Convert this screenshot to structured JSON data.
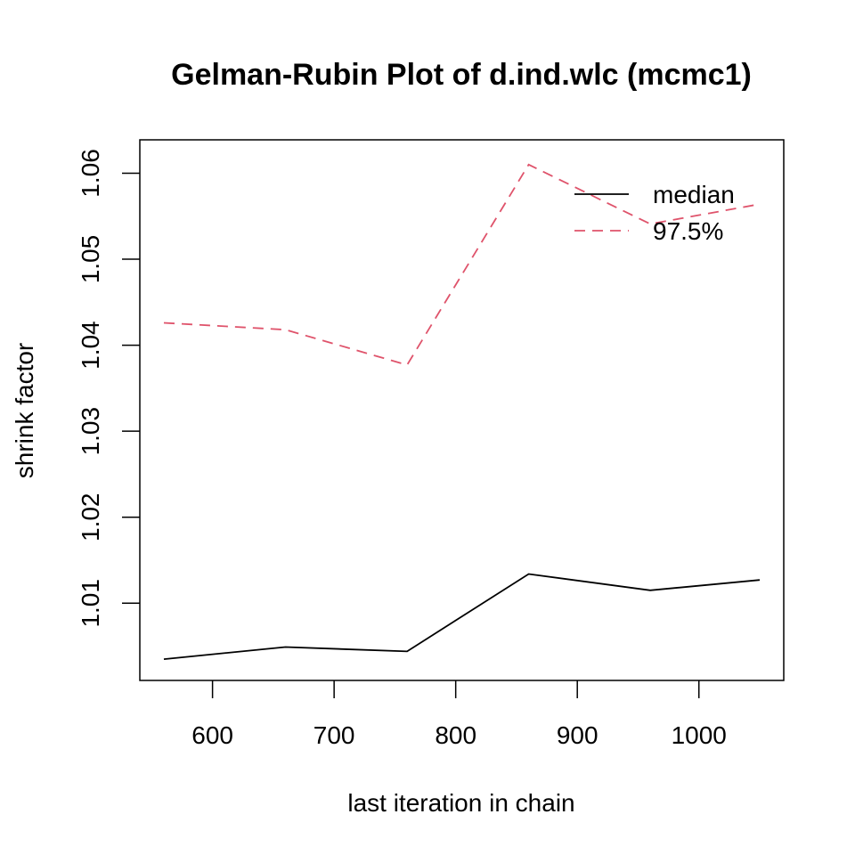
{
  "chart_data": {
    "type": "line",
    "title": "Gelman-Rubin Plot of d.ind.wlc (mcmc1)",
    "xlabel": "last iteration in chain",
    "ylabel": "shrink factor",
    "x": [
      560,
      660,
      760,
      860,
      960,
      1050
    ],
    "xlim": [
      560,
      1050
    ],
    "ylim": [
      1.0033,
      1.0615
    ],
    "xticks": [
      600,
      700,
      800,
      900,
      1000
    ],
    "yticks": [
      1.01,
      1.02,
      1.03,
      1.04,
      1.05,
      1.06
    ],
    "xtick_labels": [
      "600",
      "700",
      "800",
      "900",
      "1000"
    ],
    "ytick_labels": [
      "1.01",
      "1.02",
      "1.03",
      "1.04",
      "1.05",
      "1.06"
    ],
    "series": [
      {
        "name": "median",
        "values": [
          1.0035,
          1.0049,
          1.0044,
          1.0134,
          1.0115,
          1.0127
        ],
        "color": "#000000",
        "dash": "solid"
      },
      {
        "name": "97.5%",
        "values": [
          1.0426,
          1.0418,
          1.0377,
          1.061,
          1.0541,
          1.0564
        ],
        "color": "#DF536B",
        "dash": "dashed"
      }
    ],
    "legend": "top-right",
    "grid": false
  }
}
